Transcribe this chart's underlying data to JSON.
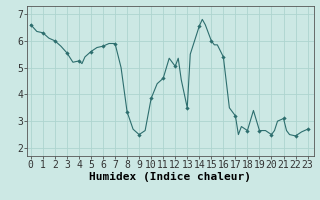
{
  "title": "",
  "xlabel": "Humidex (Indice chaleur)",
  "ylabel": "",
  "background_color": "#cce8e4",
  "line_color": "#2d6e6e",
  "marker_color": "#2d6e6e",
  "grid_color": "#aed4cf",
  "x_values": [
    0,
    0.5,
    1,
    1.5,
    2,
    2.5,
    3,
    3.5,
    4,
    4.25,
    4.5,
    5,
    5.5,
    6,
    6.5,
    7,
    7.5,
    8,
    8.5,
    9,
    9.5,
    10,
    10.5,
    11,
    11.5,
    12,
    12.25,
    12.5,
    13,
    13.25,
    13.5,
    14,
    14.25,
    14.5,
    15,
    15.25,
    15.5,
    16,
    16.5,
    17,
    17.25,
    17.5,
    18,
    18.5,
    19,
    19.5,
    20,
    20.25,
    20.5,
    21,
    21.25,
    21.5,
    22,
    22.5,
    23
  ],
  "y_values": [
    6.6,
    6.35,
    6.3,
    6.1,
    6.0,
    5.8,
    5.55,
    5.2,
    5.25,
    5.15,
    5.4,
    5.6,
    5.75,
    5.8,
    5.9,
    5.9,
    5.0,
    3.35,
    2.7,
    2.5,
    2.65,
    3.85,
    4.4,
    4.6,
    5.35,
    5.05,
    5.35,
    4.55,
    3.5,
    5.5,
    5.85,
    6.55,
    6.8,
    6.6,
    6.0,
    5.85,
    5.85,
    5.4,
    3.5,
    3.2,
    2.5,
    2.8,
    2.65,
    3.4,
    2.65,
    2.65,
    2.5,
    2.65,
    3.0,
    3.1,
    2.65,
    2.5,
    2.45,
    2.6,
    2.7
  ],
  "marker_x": [
    0,
    1,
    2,
    3,
    4,
    5,
    6,
    7,
    8,
    9,
    10,
    11,
    12,
    13,
    14,
    15,
    16,
    17,
    18,
    19,
    20,
    21,
    22,
    23
  ],
  "marker_y": [
    6.6,
    6.3,
    6.0,
    5.55,
    5.25,
    5.6,
    5.8,
    5.9,
    3.35,
    2.5,
    3.85,
    4.6,
    5.05,
    3.5,
    6.55,
    6.0,
    5.4,
    3.2,
    2.65,
    2.65,
    2.5,
    3.1,
    2.45,
    2.7
  ],
  "xlim": [
    -0.3,
    23.5
  ],
  "ylim": [
    1.7,
    7.3
  ],
  "yticks": [
    2,
    3,
    4,
    5,
    6,
    7
  ],
  "xticks": [
    0,
    1,
    2,
    3,
    4,
    5,
    6,
    7,
    8,
    9,
    10,
    11,
    12,
    13,
    14,
    15,
    16,
    17,
    18,
    19,
    20,
    21,
    22,
    23
  ],
  "tick_fontsize": 7,
  "label_fontsize": 8
}
